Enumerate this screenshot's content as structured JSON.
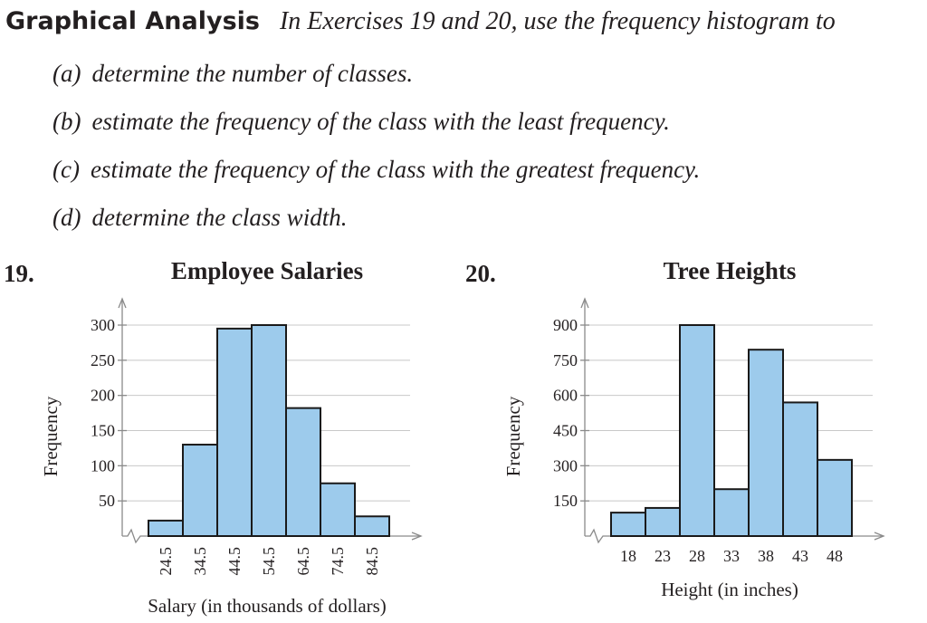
{
  "heading": {
    "title": "Graphical Analysis",
    "instructions": "In Exercises 19 and 20, use the frequency histogram to"
  },
  "parts": [
    {
      "label": "(a)",
      "text": "determine the number of classes."
    },
    {
      "label": "(b)",
      "text": "estimate the frequency of the class with the least frequency."
    },
    {
      "label": "(c)",
      "text": "estimate the frequency of the class with the greatest frequency."
    },
    {
      "label": "(d)",
      "text": "determine the class width."
    }
  ],
  "colors": {
    "bar_fill": "#9dcbec",
    "bar_stroke": "#1a1a1a",
    "text": "#231f20"
  },
  "chart_data": [
    {
      "exercise": "19.",
      "type": "bar",
      "title": "Employee Salaries",
      "xlabel": "Salary (in thousands of dollars)",
      "ylabel": "Frequency",
      "categories": [
        "24.5",
        "34.5",
        "44.5",
        "54.5",
        "64.5",
        "74.5",
        "84.5"
      ],
      "values": [
        22,
        130,
        295,
        300,
        182,
        75,
        28
      ],
      "yticks": [
        "50",
        "100",
        "150",
        "200",
        "250",
        "300"
      ],
      "ytick_values": [
        50,
        100,
        150,
        200,
        250,
        300
      ],
      "ylim": [
        0,
        300
      ],
      "grid": true
    },
    {
      "exercise": "20.",
      "type": "bar",
      "title": "Tree Heights",
      "xlabel": "Height (in inches)",
      "ylabel": "Frequency",
      "categories": [
        "18",
        "23",
        "28",
        "33",
        "38",
        "43",
        "48"
      ],
      "values": [
        100,
        120,
        900,
        200,
        795,
        570,
        325
      ],
      "yticks": [
        "150",
        "300",
        "450",
        "600",
        "750",
        "900"
      ],
      "ytick_values": [
        150,
        300,
        450,
        600,
        750,
        900
      ],
      "ylim": [
        0,
        900
      ],
      "grid": true
    }
  ]
}
